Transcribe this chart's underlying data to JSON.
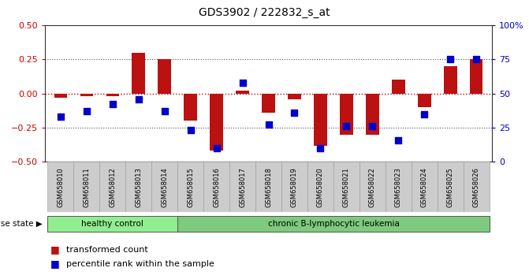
{
  "title": "GDS3902 / 222832_s_at",
  "samples": [
    "GSM658010",
    "GSM658011",
    "GSM658012",
    "GSM658013",
    "GSM658014",
    "GSM658015",
    "GSM658016",
    "GSM658017",
    "GSM658018",
    "GSM658019",
    "GSM658020",
    "GSM658021",
    "GSM658022",
    "GSM658023",
    "GSM658024",
    "GSM658025",
    "GSM658026"
  ],
  "red_bars": [
    -0.03,
    -0.02,
    -0.02,
    0.3,
    0.25,
    -0.2,
    -0.42,
    0.02,
    -0.14,
    -0.04,
    -0.38,
    -0.3,
    -0.3,
    0.1,
    -0.1,
    0.2,
    0.25
  ],
  "blue_dots_pct": [
    33,
    37,
    42,
    46,
    37,
    23,
    10,
    58,
    27,
    36,
    10,
    26,
    26,
    16,
    35,
    75,
    75
  ],
  "group_labels": [
    "healthy control",
    "chronic B-lymphocytic leukemia"
  ],
  "healthy_count": 5,
  "ylim": [
    -0.5,
    0.5
  ],
  "ylim_right": [
    0,
    100
  ],
  "yticks_left": [
    -0.5,
    -0.25,
    0,
    0.25,
    0.5
  ],
  "yticks_right": [
    0,
    25,
    50,
    75,
    100
  ],
  "bar_color": "#bb1111",
  "dot_color": "#0000cc",
  "background_color": "#ffffff",
  "plot_bg": "#ffffff",
  "label_color_left": "#cc0000",
  "label_color_right": "#0000cc",
  "zero_line_color": "#cc0000",
  "healthy_color": "#90ee90",
  "leukemia_color": "#7eca7e",
  "disease_state_label": "disease state",
  "legend_red": "transformed count",
  "legend_blue": "percentile rank within the sample",
  "bar_width": 0.5,
  "dot_size": 35
}
